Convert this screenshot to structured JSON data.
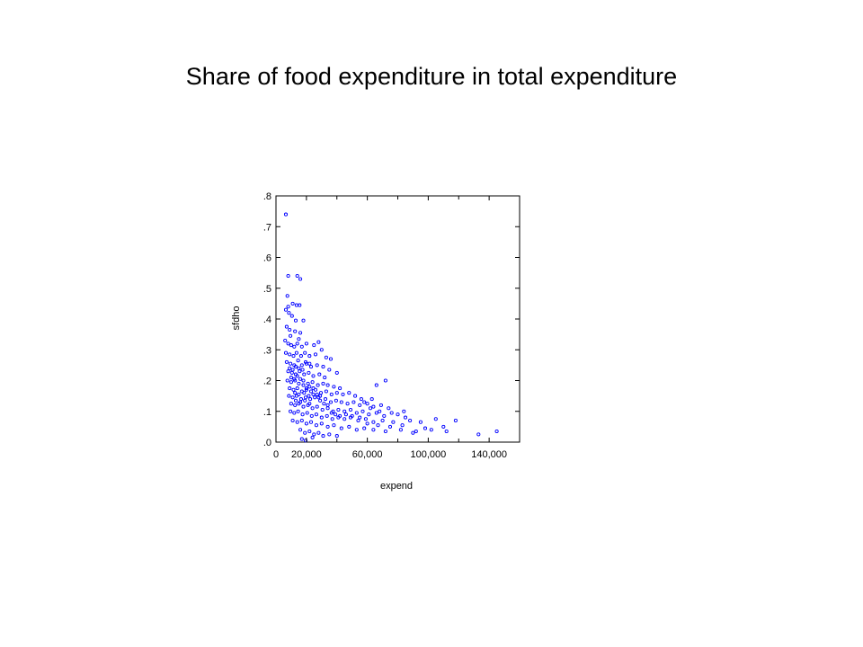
{
  "slide": {
    "title": "Share of food expenditure in total expenditure"
  },
  "chart_data": {
    "type": "scatter",
    "xlabel": "expend",
    "ylabel": "sfdho",
    "xlim": [
      0,
      160000
    ],
    "ylim": [
      0,
      0.8
    ],
    "x_ticks": [
      {
        "value": 0,
        "label": "0"
      },
      {
        "value": 20000,
        "label": "20,000"
      },
      {
        "value": 60000,
        "label": "60,000"
      },
      {
        "value": 100000,
        "label": "100,000"
      },
      {
        "value": 140000,
        "label": "140,000"
      }
    ],
    "x_minor_ticks": [
      40000,
      80000,
      120000
    ],
    "y_ticks": [
      {
        "value": 0.0,
        "label": ".0"
      },
      {
        "value": 0.1,
        "label": ".1"
      },
      {
        "value": 0.2,
        "label": ".2"
      },
      {
        "value": 0.3,
        "label": ".3"
      },
      {
        "value": 0.4,
        "label": ".4"
      },
      {
        "value": 0.5,
        "label": ".5"
      },
      {
        "value": 0.6,
        "label": ".6"
      },
      {
        "value": 0.7,
        "label": ".7"
      },
      {
        "value": 0.8,
        "label": ".8"
      }
    ],
    "grid": false,
    "marker": "open-circle",
    "color": "#0000ff",
    "points": [
      [
        6500,
        0.74
      ],
      [
        8000,
        0.54
      ],
      [
        14000,
        0.54
      ],
      [
        16000,
        0.53
      ],
      [
        7500,
        0.475
      ],
      [
        8000,
        0.44
      ],
      [
        6500,
        0.43
      ],
      [
        8500,
        0.42
      ],
      [
        11000,
        0.45
      ],
      [
        13500,
        0.445
      ],
      [
        15500,
        0.445
      ],
      [
        10500,
        0.41
      ],
      [
        13000,
        0.395
      ],
      [
        18000,
        0.395
      ],
      [
        7000,
        0.375
      ],
      [
        9000,
        0.365
      ],
      [
        12500,
        0.36
      ],
      [
        16000,
        0.355
      ],
      [
        9500,
        0.345
      ],
      [
        15000,
        0.335
      ],
      [
        6000,
        0.33
      ],
      [
        8000,
        0.32
      ],
      [
        10000,
        0.315
      ],
      [
        12000,
        0.31
      ],
      [
        14000,
        0.32
      ],
      [
        17000,
        0.31
      ],
      [
        20000,
        0.32
      ],
      [
        25000,
        0.315
      ],
      [
        30000,
        0.3
      ],
      [
        28000,
        0.325
      ],
      [
        6500,
        0.29
      ],
      [
        9000,
        0.285
      ],
      [
        11500,
        0.28
      ],
      [
        13500,
        0.29
      ],
      [
        16500,
        0.28
      ],
      [
        19000,
        0.29
      ],
      [
        22000,
        0.28
      ],
      [
        26000,
        0.285
      ],
      [
        33000,
        0.275
      ],
      [
        36000,
        0.27
      ],
      [
        7000,
        0.26
      ],
      [
        9500,
        0.255
      ],
      [
        12000,
        0.25
      ],
      [
        14500,
        0.265
      ],
      [
        17000,
        0.25
      ],
      [
        20000,
        0.255
      ],
      [
        23000,
        0.245
      ],
      [
        27000,
        0.25
      ],
      [
        31000,
        0.245
      ],
      [
        35000,
        0.235
      ],
      [
        8000,
        0.23
      ],
      [
        10500,
        0.225
      ],
      [
        13000,
        0.22
      ],
      [
        15500,
        0.23
      ],
      [
        18500,
        0.22
      ],
      [
        21500,
        0.225
      ],
      [
        24500,
        0.215
      ],
      [
        28500,
        0.22
      ],
      [
        32000,
        0.21
      ],
      [
        40000,
        0.225
      ],
      [
        72000,
        0.2
      ],
      [
        7500,
        0.2
      ],
      [
        10000,
        0.195
      ],
      [
        12500,
        0.2
      ],
      [
        15000,
        0.19
      ],
      [
        18000,
        0.2
      ],
      [
        21000,
        0.19
      ],
      [
        24000,
        0.195
      ],
      [
        27500,
        0.185
      ],
      [
        31000,
        0.19
      ],
      [
        34000,
        0.185
      ],
      [
        38000,
        0.18
      ],
      [
        42000,
        0.175
      ],
      [
        66000,
        0.185
      ],
      [
        9000,
        0.175
      ],
      [
        11500,
        0.17
      ],
      [
        14000,
        0.175
      ],
      [
        17000,
        0.165
      ],
      [
        20000,
        0.17
      ],
      [
        23000,
        0.165
      ],
      [
        26000,
        0.17
      ],
      [
        29500,
        0.16
      ],
      [
        33000,
        0.165
      ],
      [
        36500,
        0.155
      ],
      [
        40000,
        0.16
      ],
      [
        44000,
        0.155
      ],
      [
        48000,
        0.16
      ],
      [
        52000,
        0.15
      ],
      [
        56000,
        0.14
      ],
      [
        8500,
        0.15
      ],
      [
        11000,
        0.145
      ],
      [
        13500,
        0.15
      ],
      [
        16500,
        0.14
      ],
      [
        19500,
        0.145
      ],
      [
        22500,
        0.14
      ],
      [
        25500,
        0.145
      ],
      [
        29000,
        0.135
      ],
      [
        32500,
        0.14
      ],
      [
        36000,
        0.13
      ],
      [
        39500,
        0.135
      ],
      [
        43000,
        0.13
      ],
      [
        47000,
        0.125
      ],
      [
        51000,
        0.13
      ],
      [
        55000,
        0.12
      ],
      [
        60000,
        0.125
      ],
      [
        64000,
        0.115
      ],
      [
        69000,
        0.12
      ],
      [
        74000,
        0.11
      ],
      [
        10000,
        0.125
      ],
      [
        12500,
        0.12
      ],
      [
        15000,
        0.125
      ],
      [
        18000,
        0.115
      ],
      [
        21000,
        0.12
      ],
      [
        24000,
        0.11
      ],
      [
        27000,
        0.115
      ],
      [
        30500,
        0.105
      ],
      [
        34000,
        0.11
      ],
      [
        37500,
        0.1
      ],
      [
        41000,
        0.105
      ],
      [
        45000,
        0.1
      ],
      [
        49000,
        0.105
      ],
      [
        53000,
        0.095
      ],
      [
        57000,
        0.1
      ],
      [
        61000,
        0.09
      ],
      [
        66000,
        0.095
      ],
      [
        71000,
        0.085
      ],
      [
        80000,
        0.09
      ],
      [
        85000,
        0.08
      ],
      [
        9500,
        0.1
      ],
      [
        12000,
        0.095
      ],
      [
        14500,
        0.1
      ],
      [
        17500,
        0.09
      ],
      [
        20500,
        0.095
      ],
      [
        23500,
        0.085
      ],
      [
        26500,
        0.09
      ],
      [
        30000,
        0.08
      ],
      [
        33500,
        0.085
      ],
      [
        37000,
        0.075
      ],
      [
        41000,
        0.08
      ],
      [
        45000,
        0.075
      ],
      [
        49000,
        0.08
      ],
      [
        54000,
        0.07
      ],
      [
        59000,
        0.075
      ],
      [
        64000,
        0.065
      ],
      [
        70000,
        0.07
      ],
      [
        77000,
        0.065
      ],
      [
        88000,
        0.07
      ],
      [
        95000,
        0.065
      ],
      [
        105000,
        0.075
      ],
      [
        118000,
        0.07
      ],
      [
        11000,
        0.07
      ],
      [
        14000,
        0.065
      ],
      [
        17000,
        0.07
      ],
      [
        20000,
        0.06
      ],
      [
        23000,
        0.065
      ],
      [
        26500,
        0.055
      ],
      [
        30000,
        0.06
      ],
      [
        34000,
        0.05
      ],
      [
        38000,
        0.055
      ],
      [
        43000,
        0.045
      ],
      [
        48000,
        0.05
      ],
      [
        53000,
        0.04
      ],
      [
        58000,
        0.045
      ],
      [
        64000,
        0.04
      ],
      [
        72000,
        0.035
      ],
      [
        82000,
        0.04
      ],
      [
        92000,
        0.035
      ],
      [
        102000,
        0.04
      ],
      [
        112000,
        0.035
      ],
      [
        145000,
        0.035
      ],
      [
        16000,
        0.04
      ],
      [
        19000,
        0.03
      ],
      [
        22000,
        0.035
      ],
      [
        25000,
        0.025
      ],
      [
        28000,
        0.03
      ],
      [
        31000,
        0.02
      ],
      [
        35000,
        0.025
      ],
      [
        40000,
        0.02
      ],
      [
        133000,
        0.025
      ],
      [
        90000,
        0.03
      ],
      [
        17000,
        0.01
      ],
      [
        19500,
        0.005
      ],
      [
        24000,
        0.015
      ],
      [
        9000,
        0.24
      ],
      [
        11000,
        0.235
      ],
      [
        13000,
        0.245
      ],
      [
        15000,
        0.24
      ],
      [
        17500,
        0.235
      ],
      [
        19500,
        0.26
      ],
      [
        22000,
        0.255
      ],
      [
        10000,
        0.21
      ],
      [
        12000,
        0.205
      ],
      [
        14000,
        0.215
      ],
      [
        16000,
        0.205
      ],
      [
        18000,
        0.185
      ],
      [
        20000,
        0.175
      ],
      [
        22000,
        0.18
      ],
      [
        24500,
        0.175
      ],
      [
        27000,
        0.155
      ],
      [
        29000,
        0.15
      ],
      [
        31500,
        0.125
      ],
      [
        34000,
        0.12
      ],
      [
        36500,
        0.095
      ],
      [
        39000,
        0.09
      ],
      [
        42000,
        0.085
      ],
      [
        46000,
        0.09
      ],
      [
        50000,
        0.085
      ],
      [
        55000,
        0.08
      ],
      [
        60000,
        0.06
      ],
      [
        67000,
        0.055
      ],
      [
        75000,
        0.05
      ],
      [
        83000,
        0.055
      ],
      [
        98000,
        0.045
      ],
      [
        110000,
        0.05
      ],
      [
        62000,
        0.11
      ],
      [
        68000,
        0.1
      ],
      [
        76000,
        0.095
      ],
      [
        84000,
        0.1
      ],
      [
        58000,
        0.13
      ],
      [
        63000,
        0.14
      ],
      [
        12500,
        0.16
      ],
      [
        15000,
        0.155
      ],
      [
        18500,
        0.16
      ],
      [
        21500,
        0.15
      ],
      [
        24500,
        0.155
      ],
      [
        28000,
        0.145
      ],
      [
        13000,
        0.135
      ],
      [
        16000,
        0.13
      ],
      [
        19000,
        0.135
      ],
      [
        22000,
        0.125
      ]
    ]
  }
}
